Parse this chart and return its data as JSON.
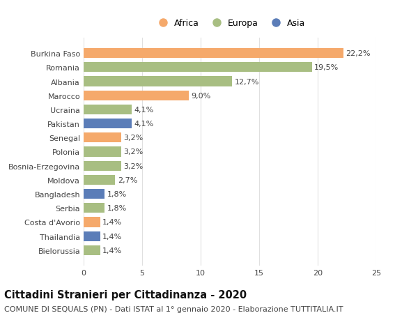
{
  "countries": [
    "Burkina Faso",
    "Romania",
    "Albania",
    "Marocco",
    "Ucraina",
    "Pakistan",
    "Senegal",
    "Polonia",
    "Bosnia-Erzegovina",
    "Moldova",
    "Bangladesh",
    "Serbia",
    "Costa d'Avorio",
    "Thailandia",
    "Bielorussia"
  ],
  "values": [
    22.2,
    19.5,
    12.7,
    9.0,
    4.1,
    4.1,
    3.2,
    3.2,
    3.2,
    2.7,
    1.8,
    1.8,
    1.4,
    1.4,
    1.4
  ],
  "continents": [
    "Africa",
    "Europa",
    "Europa",
    "Africa",
    "Europa",
    "Asia",
    "Africa",
    "Europa",
    "Europa",
    "Europa",
    "Asia",
    "Europa",
    "Africa",
    "Asia",
    "Europa"
  ],
  "colors": {
    "Africa": "#F5A96B",
    "Europa": "#A8BE82",
    "Asia": "#5B7DB8"
  },
  "xlim": [
    0,
    25
  ],
  "xticks": [
    0,
    5,
    10,
    15,
    20,
    25
  ],
  "title": "Cittadini Stranieri per Cittadinanza - 2020",
  "subtitle": "COMUNE DI SEQUALS (PN) - Dati ISTAT al 1° gennaio 2020 - Elaborazione TUTTITALIA.IT",
  "background_color": "#ffffff",
  "grid_color": "#e0e0e0",
  "bar_height": 0.7,
  "title_fontsize": 10.5,
  "subtitle_fontsize": 8,
  "label_fontsize": 8,
  "tick_fontsize": 8,
  "legend_fontsize": 9
}
